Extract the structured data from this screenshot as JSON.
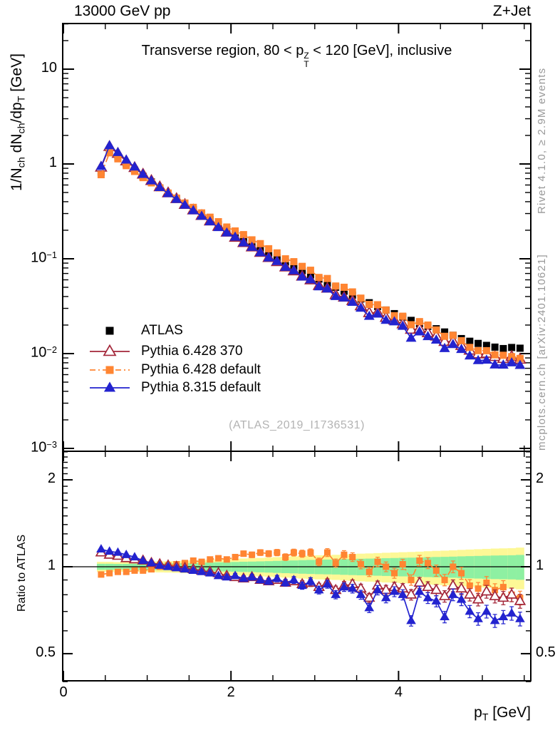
{
  "header": {
    "left": "13000 GeV pp",
    "right": "Z+Jet"
  },
  "titles": {
    "panel_html": "Transverse region, 80 &lt; p<span class=\"stk\"><span>Z</span><span>T</span></span> &lt; 120 [GeV], inclusive",
    "watermark": "(ATLAS_2019_I1736531)"
  },
  "credits": {
    "rivet": "Rivet 4.1.0, ≥ 2.9M events",
    "mcplots": "mcplots.cern.ch [arXiv:2401.10621]"
  },
  "axes": {
    "y_main_html": "1/N<sub>ch</sub> dN<sub>ch</sub>/dp<sub>T</sub> [GeV]",
    "y_ratio": "Ratio to ATLAS",
    "x_html": "p<sub>T</sub> [GeV]"
  },
  "legend": {
    "items": [
      {
        "series": "atlas",
        "label": "ATLAS"
      },
      {
        "series": "py6_370",
        "label": "Pythia 6.428 370"
      },
      {
        "series": "py6_def",
        "label": "Pythia 6.428 default"
      },
      {
        "series": "py8_def",
        "label": "Pythia 8.315 default"
      }
    ]
  },
  "chart_data": {
    "type": "line",
    "title": "Transverse region, 80 < pT(Z) < 120 [GeV], inclusive",
    "xlabel": "pT [GeV]",
    "ylabel_main": "1/Nch dNch/dpT [GeV]",
    "ylabel_ratio": "Ratio to ATLAS",
    "xlim": [
      0,
      5.58
    ],
    "ylim_main": [
      0.00093,
      30
    ],
    "ylim_ratio": [
      0.4,
      2.5
    ],
    "log_y_main": true,
    "log_y_ratio": true,
    "grid": false,
    "legend_position": "middle-left",
    "x_ticks": [
      {
        "v": 0,
        "t": "0"
      },
      {
        "v": 2,
        "t": "2"
      },
      {
        "v": 4,
        "t": "4"
      }
    ],
    "x_minor_step": 0.5,
    "y_ticks_main": [
      {
        "v": 10,
        "base": "10"
      },
      {
        "v": 1,
        "base": "1"
      },
      {
        "v": 0.1,
        "base": "10",
        "exp": "−1"
      },
      {
        "v": 0.01,
        "base": "10",
        "exp": "−2"
      },
      {
        "v": 0.001,
        "base": "10",
        "exp": "−3"
      }
    ],
    "y_ticks_ratio": [
      {
        "v": 2,
        "t": "2"
      },
      {
        "v": 1,
        "t": "1"
      },
      {
        "v": 0.5,
        "t": "0.5"
      }
    ],
    "x": [
      0.45,
      0.55,
      0.65,
      0.75,
      0.85,
      0.95,
      1.05,
      1.15,
      1.25,
      1.35,
      1.45,
      1.55,
      1.65,
      1.75,
      1.85,
      1.95,
      2.05,
      2.15,
      2.25,
      2.35,
      2.45,
      2.55,
      2.65,
      2.75,
      2.85,
      2.95,
      3.05,
      3.15,
      3.25,
      3.35,
      3.45,
      3.55,
      3.65,
      3.75,
      3.85,
      3.95,
      4.05,
      4.15,
      4.25,
      4.35,
      4.45,
      4.55,
      4.65,
      4.75,
      4.85,
      4.95,
      5.05,
      5.15,
      5.25,
      5.35,
      5.45
    ],
    "series": [
      {
        "id": "atlas",
        "name": "ATLAS",
        "color": "#000000",
        "marker": "square-filled",
        "line": "none",
        "values": [
          0.82,
          1.38,
          1.18,
          1.0,
          0.86,
          0.74,
          0.645,
          0.56,
          0.488,
          0.428,
          0.376,
          0.332,
          0.293,
          0.259,
          0.23,
          0.204,
          0.182,
          0.162,
          0.144,
          0.129,
          0.115,
          0.103,
          0.0925,
          0.0832,
          0.0749,
          0.0676,
          0.0611,
          0.0553,
          0.0501,
          0.0455,
          0.0414,
          0.0377,
          0.0344,
          0.0315,
          0.0288,
          0.0264,
          0.0243,
          0.0224,
          0.0207,
          0.0194,
          0.0183,
          0.0169,
          0.0156,
          0.0144,
          0.0135,
          0.0128,
          0.0122,
          0.0117,
          0.0113,
          0.0116,
          0.0114
        ]
      },
      {
        "id": "py6_370",
        "name": "Pythia 6.428 370",
        "color": "#a32639",
        "marker": "triangle-open",
        "line": "solid",
        "ratio_to_atlas": [
          1.12,
          1.1,
          1.09,
          1.07,
          1.06,
          1.05,
          1.03,
          1.02,
          1.01,
          1.0,
          0.99,
          0.98,
          0.97,
          0.96,
          0.95,
          0.93,
          0.92,
          0.91,
          0.92,
          0.9,
          0.89,
          0.9,
          0.88,
          0.89,
          0.87,
          0.88,
          0.85,
          0.88,
          0.83,
          0.86,
          0.87,
          0.84,
          0.78,
          0.86,
          0.83,
          0.85,
          0.84,
          0.8,
          0.88,
          0.85,
          0.83,
          0.79,
          0.86,
          0.84,
          0.8,
          0.77,
          0.82,
          0.79,
          0.78,
          0.8,
          0.76
        ]
      },
      {
        "id": "py6_def",
        "name": "Pythia 6.428 default",
        "color": "#ff8532",
        "marker": "square-filled",
        "line": "dashdot",
        "ratio_to_atlas": [
          0.94,
          0.95,
          0.96,
          0.96,
          0.97,
          0.97,
          0.98,
          1.0,
          1.01,
          1.02,
          1.03,
          1.05,
          1.04,
          1.06,
          1.07,
          1.06,
          1.08,
          1.11,
          1.1,
          1.12,
          1.11,
          1.12,
          1.08,
          1.12,
          1.11,
          1.12,
          1.04,
          1.12,
          1.03,
          1.1,
          1.08,
          1.02,
          0.96,
          1.04,
          1.0,
          0.95,
          1.02,
          0.9,
          1.05,
          1.03,
          0.97,
          0.9,
          1.0,
          0.95,
          0.86,
          0.84,
          0.88,
          0.83,
          0.85,
          0.8,
          0.78
        ]
      },
      {
        "id": "py8_def",
        "name": "Pythia 8.315 default",
        "color": "#2323cf",
        "marker": "triangle-filled",
        "line": "solid",
        "ratio_to_atlas": [
          1.15,
          1.13,
          1.12,
          1.1,
          1.08,
          1.05,
          1.03,
          1.01,
          1.0,
          0.99,
          0.98,
          0.97,
          0.96,
          0.95,
          0.93,
          0.92,
          0.93,
          0.91,
          0.92,
          0.9,
          0.89,
          0.91,
          0.88,
          0.9,
          0.86,
          0.89,
          0.83,
          0.87,
          0.8,
          0.85,
          0.84,
          0.8,
          0.72,
          0.83,
          0.78,
          0.82,
          0.8,
          0.65,
          0.82,
          0.78,
          0.76,
          0.67,
          0.8,
          0.77,
          0.7,
          0.66,
          0.7,
          0.65,
          0.67,
          0.69,
          0.66
        ]
      }
    ],
    "ratio_band": {
      "yellow_color": "#fdf896",
      "green_color": "#8ef0a2",
      "half_width_yellow": [
        0.04,
        0.04,
        0.038,
        0.039,
        0.04,
        0.041,
        0.042,
        0.044,
        0.045,
        0.047,
        0.05,
        0.052,
        0.055,
        0.057,
        0.06,
        0.062,
        0.065,
        0.068,
        0.07,
        0.073,
        0.076,
        0.08,
        0.083,
        0.086,
        0.09,
        0.093,
        0.096,
        0.098,
        0.1,
        0.104,
        0.107,
        0.11,
        0.112,
        0.115,
        0.118,
        0.12,
        0.123,
        0.125,
        0.128,
        0.132,
        0.135,
        0.137,
        0.14,
        0.144,
        0.147,
        0.15,
        0.153,
        0.156,
        0.158,
        0.16,
        0.165
      ],
      "green_fraction": 0.6,
      "bin_half_width": 0.05
    },
    "ratio_err": {
      "frac_start": 0.004,
      "frac_end": 0.055
    }
  }
}
